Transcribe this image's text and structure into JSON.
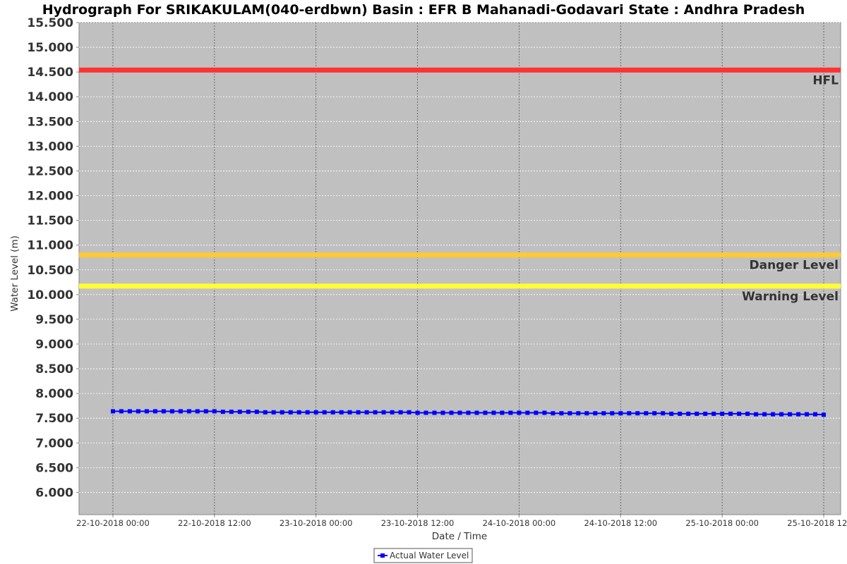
{
  "chart_data": {
    "type": "line",
    "title": "Hydrograph For SRIKAKULAM(040-erdbwn) Basin : EFR B Mahanadi-Godavari State : Andhra Pradesh",
    "xlabel": "Date / Time",
    "ylabel": "Water Level (m)",
    "ylim": [
      5.55,
      15.5
    ],
    "yticks": [
      "15.500",
      "15.000",
      "14.500",
      "14.000",
      "13.500",
      "13.000",
      "12.500",
      "12.000",
      "11.500",
      "11.000",
      "10.500",
      "10.000",
      "9.500",
      "9.000",
      "8.500",
      "8.000",
      "7.500",
      "7.000",
      "6.500",
      "6.000"
    ],
    "xlim": [
      "2018-10-21 20:00",
      "2018-10-25 14:00"
    ],
    "xticks": [
      {
        "x": "2018-10-22 00:00",
        "label": "22-10-2018 00:00"
      },
      {
        "x": "2018-10-22 12:00",
        "label": "22-10-2018 12:00"
      },
      {
        "x": "2018-10-23 00:00",
        "label": "23-10-2018 00:00"
      },
      {
        "x": "2018-10-23 12:00",
        "label": "23-10-2018 12:00"
      },
      {
        "x": "2018-10-24 00:00",
        "label": "24-10-2018 00:00"
      },
      {
        "x": "2018-10-24 12:00",
        "label": "24-10-2018 12:00"
      },
      {
        "x": "2018-10-25 00:00",
        "label": "25-10-2018 00:00"
      },
      {
        "x": "2018-10-25 12:00",
        "label": "25-10-2018 12:00"
      }
    ],
    "grid": true,
    "legend": "bottom-center",
    "thresholds": [
      {
        "name": "HFL",
        "value": 14.54,
        "color": "#ff3333"
      },
      {
        "name": "Danger Level",
        "value": 10.8,
        "color": "#ffc933"
      },
      {
        "name": "Warning Level",
        "value": 10.17,
        "color": "#ffff33"
      }
    ],
    "series": [
      {
        "name": "Actual Water Level",
        "color": "#0000ff",
        "marker": "square",
        "start": "2018-10-22 00:00",
        "interval_hours": 1,
        "values": [
          7.64,
          7.64,
          7.64,
          7.64,
          7.64,
          7.64,
          7.64,
          7.64,
          7.64,
          7.64,
          7.64,
          7.64,
          7.64,
          7.63,
          7.63,
          7.63,
          7.63,
          7.63,
          7.62,
          7.62,
          7.62,
          7.62,
          7.62,
          7.62,
          7.62,
          7.62,
          7.62,
          7.62,
          7.62,
          7.62,
          7.62,
          7.62,
          7.62,
          7.62,
          7.62,
          7.62,
          7.61,
          7.61,
          7.61,
          7.61,
          7.61,
          7.61,
          7.61,
          7.61,
          7.61,
          7.61,
          7.61,
          7.61,
          7.61,
          7.61,
          7.61,
          7.61,
          7.6,
          7.6,
          7.6,
          7.6,
          7.6,
          7.6,
          7.6,
          7.6,
          7.6,
          7.6,
          7.6,
          7.6,
          7.6,
          7.6,
          7.59,
          7.59,
          7.59,
          7.59,
          7.59,
          7.59,
          7.59,
          7.59,
          7.59,
          7.59,
          7.58,
          7.58,
          7.58,
          7.58,
          7.58,
          7.58,
          7.58,
          7.58,
          7.57
        ]
      }
    ]
  },
  "colors": {
    "plot_background": "#c0c0c0",
    "gridline": "#ffffff",
    "vertical_gridline": "#555555"
  }
}
